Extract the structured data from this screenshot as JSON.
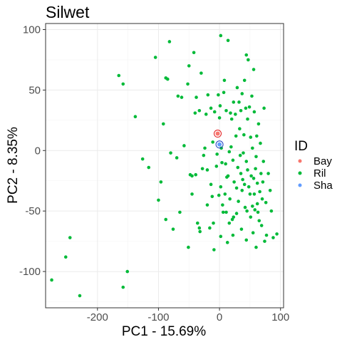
{
  "chart_data": {
    "type": "scatter",
    "title": "Silwet",
    "xlabel": "PC1 - 15.69%",
    "ylabel": "PC2 - 8.35%",
    "xlim": [
      -285,
      105
    ],
    "ylim": [
      -130,
      105
    ],
    "x_ticks": [
      -200,
      -100,
      0,
      100
    ],
    "y_ticks": [
      -100,
      -50,
      0,
      50,
      100
    ],
    "grid": true,
    "legend": {
      "title": "ID",
      "position": "right",
      "entries": [
        {
          "label": "Bay",
          "color": "#F8766D"
        },
        {
          "label": "Ril",
          "color": "#00BA38"
        },
        {
          "label": "Sha",
          "color": "#619CFF"
        }
      ]
    },
    "series": [
      {
        "name": "Ril",
        "color": "#00BA38",
        "points": [
          [
            -275,
            -107
          ],
          [
            -252,
            -88
          ],
          [
            -245,
            -72
          ],
          [
            -229,
            -120
          ],
          [
            -165,
            62
          ],
          [
            -158,
            55
          ],
          [
            -158,
            -113
          ],
          [
            -151,
            -100
          ],
          [
            -138,
            28
          ],
          [
            -126,
            -7
          ],
          [
            -116,
            -14
          ],
          [
            -105,
            77
          ],
          [
            -100,
            -41
          ],
          [
            -96,
            -26
          ],
          [
            -92,
            22
          ],
          [
            -88,
            -57
          ],
          [
            -88,
            60
          ],
          [
            -85,
            59
          ],
          [
            -82,
            90
          ],
          [
            -80,
            -2
          ],
          [
            -76,
            -65
          ],
          [
            -70,
            -6
          ],
          [
            -68,
            45
          ],
          [
            -65,
            -51
          ],
          [
            -62,
            44
          ],
          [
            -58,
            4
          ],
          [
            -52,
            55
          ],
          [
            -51,
            -80
          ],
          [
            -50,
            70
          ],
          [
            -48,
            -20
          ],
          [
            -45,
            -36
          ],
          [
            -45,
            -21
          ],
          [
            -42,
            81
          ],
          [
            -40,
            31
          ],
          [
            -39,
            -20
          ],
          [
            -38,
            44
          ],
          [
            -36,
            -60
          ],
          [
            -33,
            33
          ],
          [
            -33,
            -64
          ],
          [
            -32,
            -67
          ],
          [
            -30,
            64
          ],
          [
            -28,
            -15
          ],
          [
            -26,
            -4
          ],
          [
            -24,
            2
          ],
          [
            -22,
            30
          ],
          [
            -20,
            -16
          ],
          [
            -20,
            -45
          ],
          [
            -19,
            46
          ],
          [
            -16,
            -64
          ],
          [
            -14,
            35
          ],
          [
            -14,
            -28
          ],
          [
            -12,
            -38
          ],
          [
            -11,
            7
          ],
          [
            -10,
            -60
          ],
          [
            -9,
            -82
          ],
          [
            -8,
            32
          ],
          [
            -5,
            -13
          ],
          [
            -4,
            -3
          ],
          [
            -2,
            46
          ],
          [
            -1,
            -37
          ],
          [
            0,
            27
          ],
          [
            1,
            37
          ],
          [
            2,
            -30
          ],
          [
            2,
            95
          ],
          [
            2,
            -71
          ],
          [
            3,
            2
          ],
          [
            4,
            -10
          ],
          [
            5,
            -45
          ],
          [
            6,
            -51
          ],
          [
            7,
            48
          ],
          [
            8,
            58
          ],
          [
            9,
            -36
          ],
          [
            10,
            -11
          ],
          [
            11,
            -51
          ],
          [
            11,
            33
          ],
          [
            12,
            -22
          ],
          [
            13,
            -76
          ],
          [
            14,
            91
          ],
          [
            14,
            -21
          ],
          [
            16,
            -1
          ],
          [
            16,
            -60
          ],
          [
            17,
            -40
          ],
          [
            18,
            31
          ],
          [
            19,
            3
          ],
          [
            20,
            26
          ],
          [
            21,
            -57
          ],
          [
            22,
            -8
          ],
          [
            22,
            -70
          ],
          [
            23,
            40
          ],
          [
            23,
            -55
          ],
          [
            24,
            -26
          ],
          [
            26,
            30
          ],
          [
            27,
            12
          ],
          [
            28,
            -31
          ],
          [
            28,
            -52
          ],
          [
            29,
            52
          ],
          [
            30,
            -14
          ],
          [
            31,
            -42
          ],
          [
            32,
            40
          ],
          [
            33,
            18
          ],
          [
            34,
            -4
          ],
          [
            35,
            33
          ],
          [
            35,
            -19
          ],
          [
            36,
            -65
          ],
          [
            37,
            -33
          ],
          [
            37,
            47
          ],
          [
            38,
            -24
          ],
          [
            39,
            -2
          ],
          [
            40,
            13
          ],
          [
            41,
            -28
          ],
          [
            41,
            58
          ],
          [
            42,
            -47
          ],
          [
            43,
            35
          ],
          [
            44,
            -9
          ],
          [
            44,
            79
          ],
          [
            44,
            -74
          ],
          [
            45,
            -50
          ],
          [
            46,
            26
          ],
          [
            46,
            -16
          ],
          [
            47,
            75
          ],
          [
            48,
            -30
          ],
          [
            49,
            36
          ],
          [
            50,
            -36
          ],
          [
            51,
            11
          ],
          [
            51,
            -55
          ],
          [
            52,
            -21
          ],
          [
            53,
            45
          ],
          [
            54,
            2
          ],
          [
            54,
            -46
          ],
          [
            55,
            -68
          ],
          [
            56,
            67
          ],
          [
            56,
            -23
          ],
          [
            57,
            -36
          ],
          [
            57,
            32
          ],
          [
            58,
            -49
          ],
          [
            59,
            -15
          ],
          [
            60,
            -5
          ],
          [
            60,
            -80
          ],
          [
            61,
            12
          ],
          [
            62,
            -44
          ],
          [
            62,
            -27
          ],
          [
            63,
            -51
          ],
          [
            64,
            22
          ],
          [
            65,
            -58
          ],
          [
            66,
            -34
          ],
          [
            67,
            6
          ],
          [
            68,
            -19
          ],
          [
            69,
            -62
          ],
          [
            70,
            -40
          ],
          [
            71,
            -26
          ],
          [
            72,
            -9
          ],
          [
            73,
            35
          ],
          [
            74,
            -75
          ],
          [
            76,
            -43
          ],
          [
            77,
            -70
          ],
          [
            80,
            -19
          ],
          [
            83,
            -33
          ],
          [
            85,
            -50
          ],
          [
            88,
            -72
          ],
          [
            94,
            -69
          ]
        ]
      },
      {
        "name": "Bay",
        "color": "#F8766D",
        "points": [
          [
            -3,
            14
          ]
        ]
      },
      {
        "name": "Sha",
        "color": "#619CFF",
        "points": [
          [
            0,
            5
          ]
        ]
      }
    ]
  }
}
